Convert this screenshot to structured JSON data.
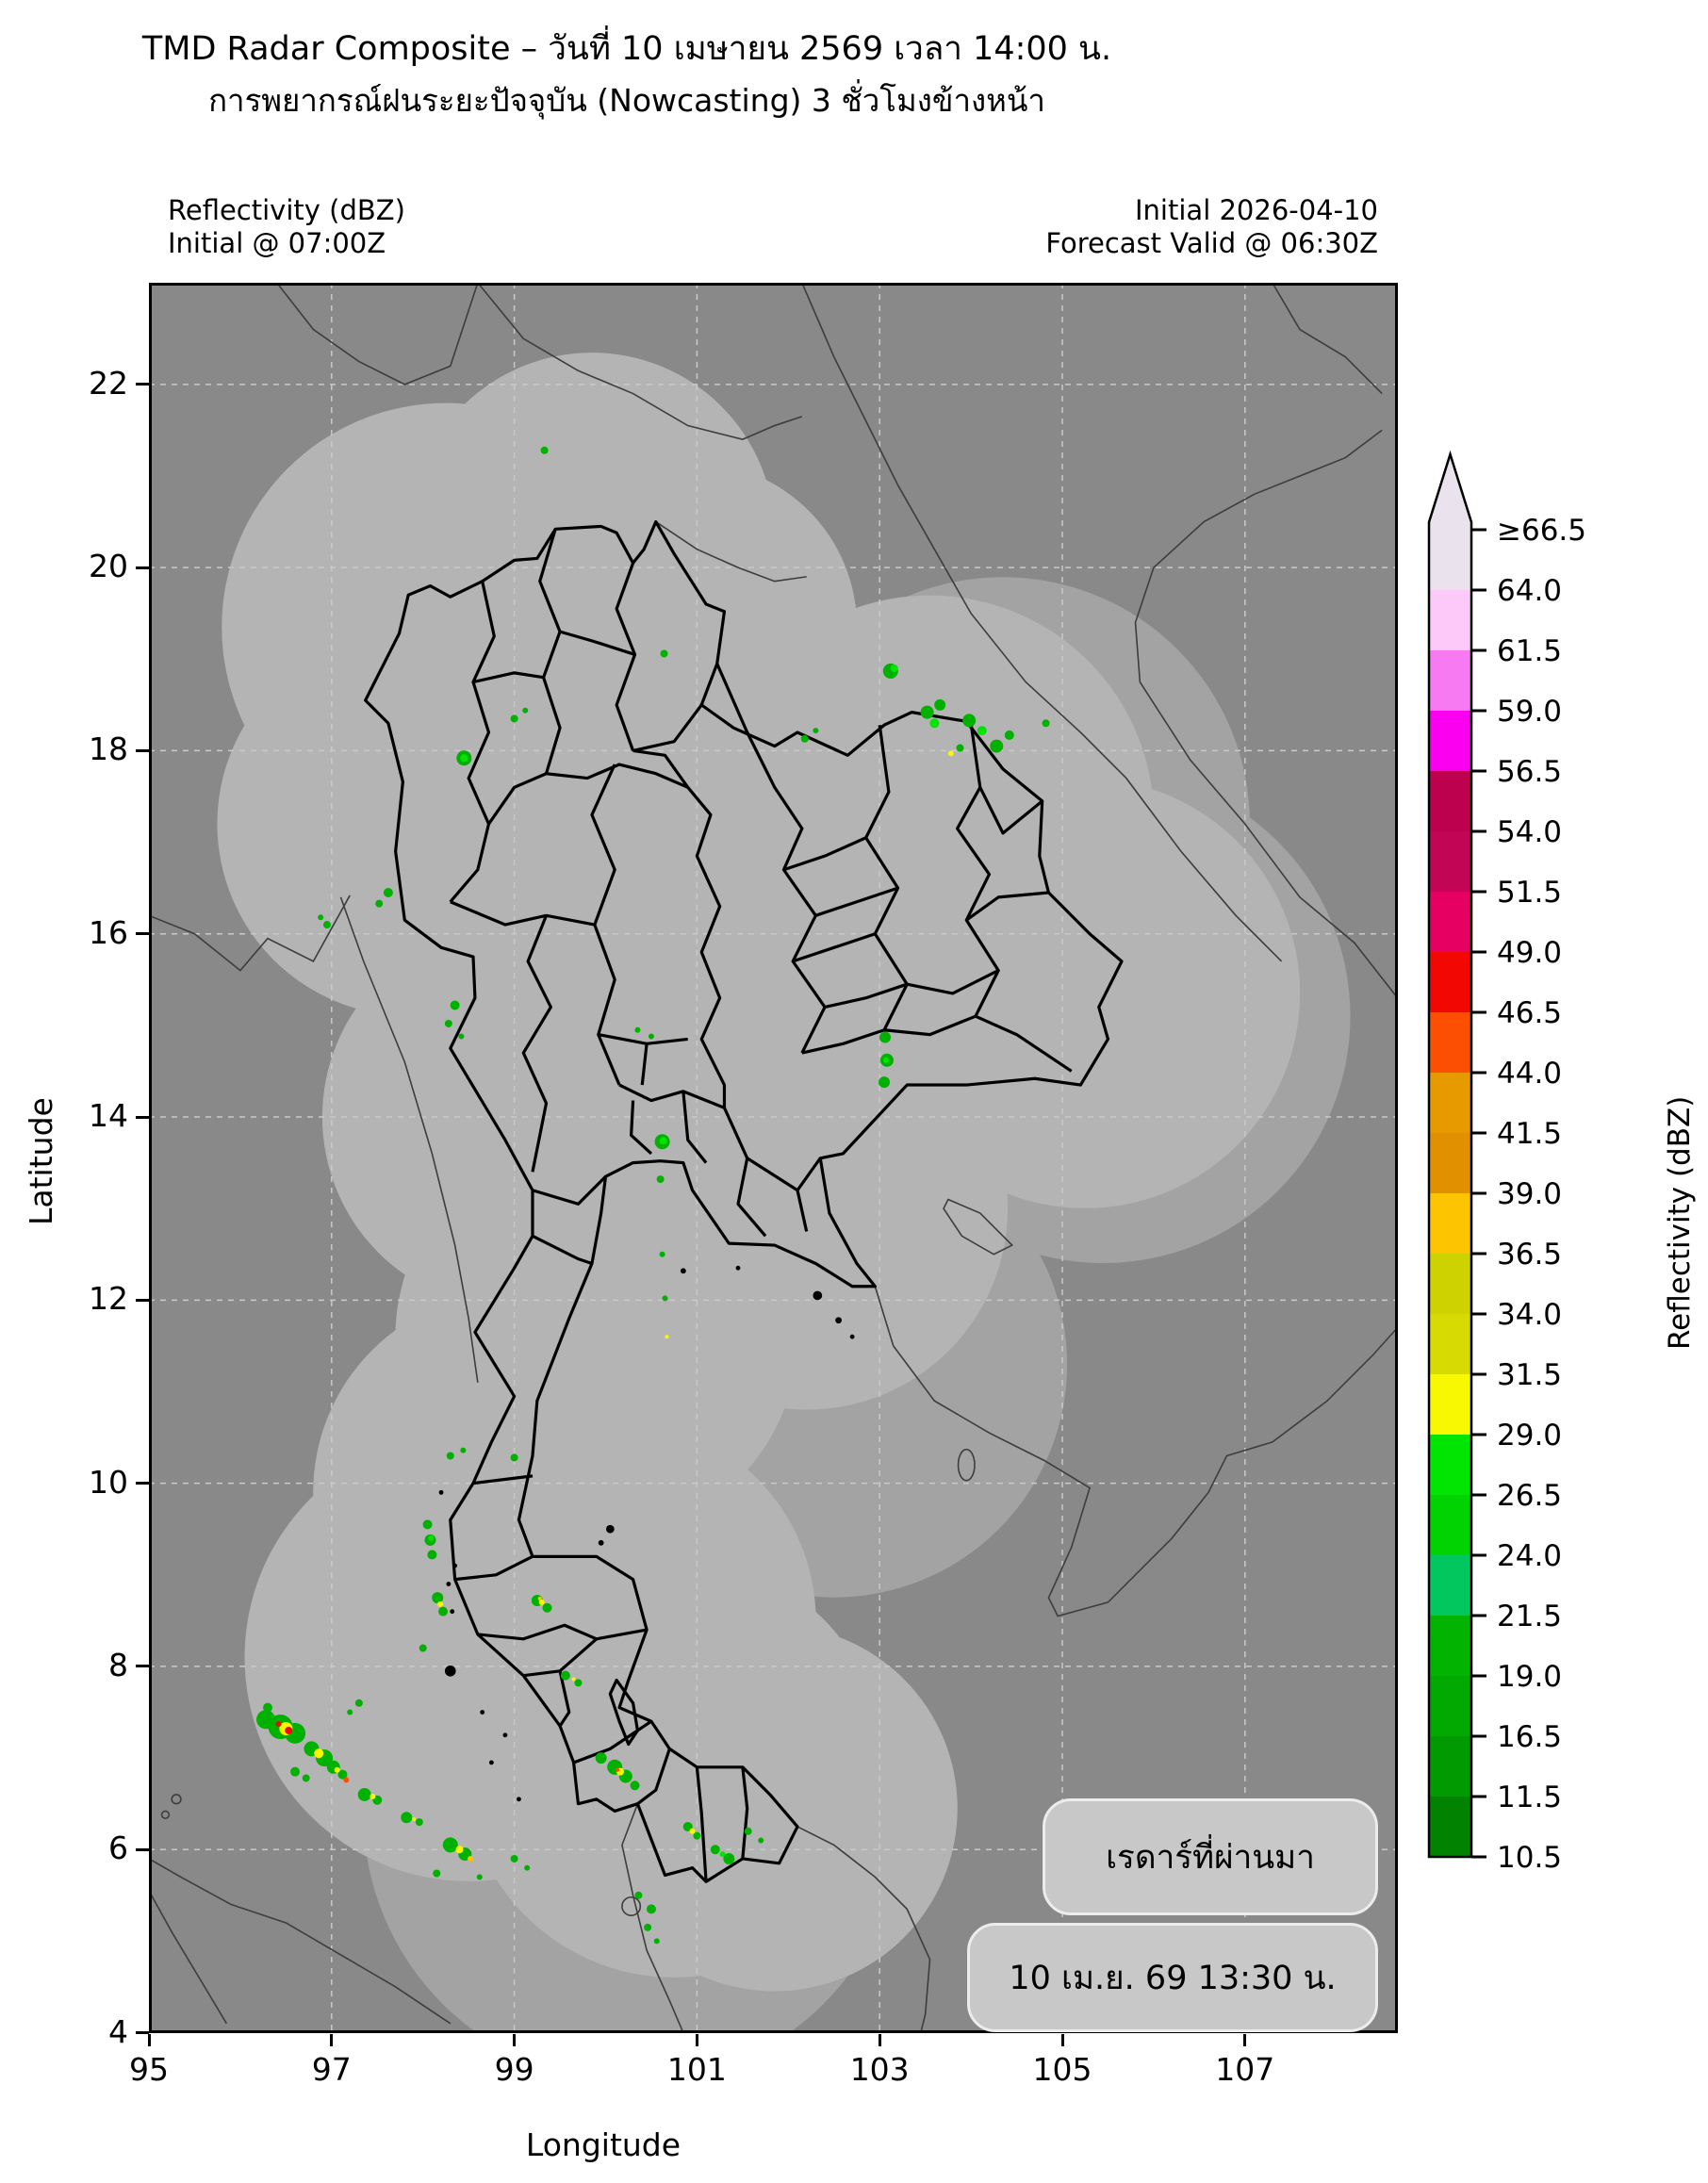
{
  "figure": {
    "title_line1": "TMD Radar Composite – วันที่ 10 เมษายน 2569 เวลา 14:00 น.",
    "title_line2": "การพยากรณ์ฝนระยะปัจจุบัน (Nowcasting) 3 ชั่วโมงข้างหน้า"
  },
  "annotations": {
    "top_left_line1": "Reflectivity (dBZ)",
    "top_left_line2": "Initial @ 07:00Z",
    "top_right_line1": "Initial 2026-04-10",
    "top_right_line2": "Forecast Valid @ 06:30Z",
    "box_radar_past": "เรดาร์ที่ผ่านมา",
    "box_timestamp": "10 เม.ย. 69 13:30 น."
  },
  "axes": {
    "xlabel": "Longitude",
    "ylabel": "Latitude",
    "x_ticks": [
      {
        "value": 95,
        "label": "95"
      },
      {
        "value": 97,
        "label": "97"
      },
      {
        "value": 99,
        "label": "99"
      },
      {
        "value": 101,
        "label": "101"
      },
      {
        "value": 103,
        "label": "103"
      },
      {
        "value": 105,
        "label": "105"
      },
      {
        "value": 107,
        "label": "107"
      }
    ],
    "y_ticks": [
      {
        "value": 22,
        "label": "22"
      },
      {
        "value": 20,
        "label": "20"
      },
      {
        "value": 18,
        "label": "18"
      },
      {
        "value": 16,
        "label": "16"
      },
      {
        "value": 14,
        "label": "14"
      },
      {
        "value": 12,
        "label": "12"
      },
      {
        "value": 10,
        "label": "10"
      },
      {
        "value": 8,
        "label": "8"
      },
      {
        "value": 6,
        "label": "6"
      },
      {
        "value": 4,
        "label": "4"
      }
    ]
  },
  "colorbar": {
    "label": "Reflectivity (dBZ)",
    "tick_labels": [
      "≥66.5",
      "64.0",
      "61.5",
      "59.0",
      "56.5",
      "54.0",
      "51.5",
      "49.0",
      "46.5",
      "44.0",
      "41.5",
      "39.0",
      "36.5",
      "34.0",
      "31.5",
      "29.0",
      "26.5",
      "24.0",
      "21.5",
      "19.0",
      "16.5",
      "11.5",
      "10.5"
    ],
    "segment_colors_top_to_bottom": [
      "#eae2ec",
      "#fdc9f8",
      "#f87af2",
      "#fb00f0",
      "#bd014f",
      "#c30556",
      "#e60061",
      "#f20703",
      "#fc4f03",
      "#e79900",
      "#e19100",
      "#fdc401",
      "#cfd201",
      "#d8da03",
      "#f7f801",
      "#02e402",
      "#00d301",
      "#01c75e",
      "#02b302",
      "#01a901",
      "#019a01",
      "#018301"
    ],
    "arrow_color": "#eae2ec"
  },
  "map_style": {
    "background": "#898989",
    "coverage_fill": "#b4b4b4",
    "coverage_far_fill": "#a3a3a3",
    "grid_color": "#c9c9c9",
    "province_color": "#000000",
    "country_color": "#3d3d3d",
    "box_fill": "#c8c8c8",
    "box_border": "#ececec"
  },
  "chart_data": {
    "type": "radar_reflectivity_map",
    "lon_range": [
      95,
      108.67
    ],
    "lat_range": [
      4,
      23.11
    ],
    "grid_lons": [
      97,
      99,
      101,
      103,
      105,
      107
    ],
    "grid_lats": [
      6,
      8,
      10,
      12,
      14,
      16,
      18,
      20,
      22
    ],
    "coverage_circles_deg": [
      [
        99.85,
        20.35,
        2.0
      ],
      [
        98.25,
        19.35,
        2.45
      ],
      [
        100.95,
        19.35,
        1.8
      ],
      [
        97.85,
        17.2,
        2.1
      ],
      [
        99.75,
        17.2,
        2.1
      ],
      [
        101.7,
        17.6,
        2.2
      ],
      [
        103.55,
        17.25,
        2.45
      ],
      [
        105.25,
        15.35,
        2.35
      ],
      [
        102.5,
        15.3,
        2.2
      ],
      [
        100.45,
        15.3,
        2.2
      ],
      [
        99.0,
        14.0,
        2.1
      ],
      [
        100.45,
        13.35,
        2.25
      ],
      [
        102.2,
        13.0,
        2.2
      ],
      [
        99.9,
        11.6,
        2.2
      ],
      [
        99.0,
        9.9,
        2.2
      ],
      [
        98.5,
        8.1,
        2.45
      ],
      [
        100.1,
        8.5,
        2.2
      ],
      [
        100.75,
        6.9,
        2.3
      ],
      [
        101.85,
        6.45,
        2.0
      ]
    ],
    "far_coverage_circles_deg": [
      [
        104.35,
        17.2,
        2.7
      ],
      [
        105.45,
        15.1,
        2.7
      ],
      [
        102.5,
        11.3,
        2.55
      ],
      [
        100.3,
        6.4,
        2.95
      ]
    ],
    "echo_palette": {
      "g": "#00b100",
      "G": "#02e402",
      "y": "#f7f801",
      "a": "#fdc401",
      "o": "#fc4f03",
      "r": "#f20703"
    },
    "echoes_lon_lat_r_color": [
      [
        99.33,
        21.28,
        4,
        "g"
      ],
      [
        103.12,
        18.87,
        8,
        "g"
      ],
      [
        103.16,
        18.9,
        4,
        "G"
      ],
      [
        103.52,
        18.42,
        7,
        "g"
      ],
      [
        103.66,
        18.5,
        6,
        "g"
      ],
      [
        103.6,
        18.3,
        5,
        "G"
      ],
      [
        103.98,
        18.33,
        7,
        "g"
      ],
      [
        104.12,
        18.22,
        5,
        "G"
      ],
      [
        104.28,
        18.05,
        7,
        "g"
      ],
      [
        104.42,
        18.17,
        5,
        "g"
      ],
      [
        103.88,
        18.03,
        4,
        "g"
      ],
      [
        103.78,
        17.97,
        3,
        "y"
      ],
      [
        104.82,
        18.3,
        4,
        "g"
      ],
      [
        102.18,
        18.13,
        4,
        "g"
      ],
      [
        102.3,
        18.22,
        3,
        "g"
      ],
      [
        99.0,
        18.35,
        4,
        "g"
      ],
      [
        99.12,
        18.44,
        3,
        "g"
      ],
      [
        98.45,
        17.92,
        8,
        "g"
      ],
      [
        98.45,
        17.92,
        4,
        "G"
      ],
      [
        100.64,
        19.06,
        4,
        "g"
      ],
      [
        97.62,
        16.45,
        5,
        "g"
      ],
      [
        97.52,
        16.33,
        4,
        "g"
      ],
      [
        96.95,
        16.1,
        4,
        "g"
      ],
      [
        96.88,
        16.18,
        3,
        "g"
      ],
      [
        98.35,
        15.22,
        5,
        "g"
      ],
      [
        98.28,
        15.02,
        4,
        "g"
      ],
      [
        98.42,
        14.88,
        3,
        "g"
      ],
      [
        100.35,
        14.95,
        3,
        "g"
      ],
      [
        100.5,
        14.88,
        3,
        "g"
      ],
      [
        103.06,
        14.87,
        6,
        "g"
      ],
      [
        103.08,
        14.62,
        7,
        "g"
      ],
      [
        103.05,
        14.38,
        6,
        "g"
      ],
      [
        103.07,
        14.62,
        3,
        "G"
      ],
      [
        100.62,
        13.73,
        8,
        "g"
      ],
      [
        100.63,
        13.74,
        4,
        "G"
      ],
      [
        100.6,
        13.32,
        4,
        "g"
      ],
      [
        100.62,
        12.5,
        3,
        "g"
      ],
      [
        100.65,
        12.02,
        3,
        "g"
      ],
      [
        100.67,
        11.6,
        2,
        "y"
      ],
      [
        96.3,
        7.55,
        5,
        "g"
      ],
      [
        96.28,
        7.42,
        10,
        "g"
      ],
      [
        96.44,
        7.34,
        13,
        "g"
      ],
      [
        96.6,
        7.27,
        11,
        "g"
      ],
      [
        96.5,
        7.32,
        7,
        "y"
      ],
      [
        96.53,
        7.3,
        4,
        "r"
      ],
      [
        96.42,
        7.37,
        3,
        "r"
      ],
      [
        96.6,
        6.85,
        5,
        "g"
      ],
      [
        96.72,
        6.78,
        4,
        "g"
      ],
      [
        96.78,
        7.1,
        8,
        "g"
      ],
      [
        96.92,
        7.0,
        9,
        "g"
      ],
      [
        96.86,
        7.05,
        5,
        "y"
      ],
      [
        97.02,
        6.9,
        7,
        "g"
      ],
      [
        97.12,
        6.82,
        5,
        "g"
      ],
      [
        97.06,
        6.87,
        3,
        "y"
      ],
      [
        97.16,
        6.76,
        3,
        "o"
      ],
      [
        97.36,
        6.6,
        7,
        "g"
      ],
      [
        97.5,
        6.54,
        5,
        "g"
      ],
      [
        97.45,
        6.58,
        3,
        "y"
      ],
      [
        97.3,
        7.6,
        4,
        "g"
      ],
      [
        97.2,
        7.5,
        3,
        "g"
      ],
      [
        97.82,
        6.35,
        6,
        "g"
      ],
      [
        97.96,
        6.3,
        4,
        "g"
      ],
      [
        97.9,
        6.33,
        2,
        "y"
      ],
      [
        98.3,
        6.05,
        8,
        "g"
      ],
      [
        98.46,
        5.95,
        7,
        "g"
      ],
      [
        98.4,
        6.0,
        4,
        "y"
      ],
      [
        98.52,
        5.9,
        3,
        "a"
      ],
      [
        98.15,
        5.74,
        4,
        "g"
      ],
      [
        98.62,
        5.7,
        3,
        "g"
      ],
      [
        99.0,
        5.9,
        4,
        "g"
      ],
      [
        99.14,
        5.8,
        3,
        "g"
      ],
      [
        98.05,
        9.55,
        5,
        "g"
      ],
      [
        98.08,
        9.38,
        6,
        "g"
      ],
      [
        98.1,
        9.22,
        5,
        "g"
      ],
      [
        98.09,
        9.4,
        3,
        "G"
      ],
      [
        98.16,
        8.75,
        6,
        "g"
      ],
      [
        98.22,
        8.6,
        5,
        "g"
      ],
      [
        98.19,
        8.68,
        3,
        "y"
      ],
      [
        98.0,
        8.2,
        4,
        "g"
      ],
      [
        98.3,
        10.3,
        4,
        "g"
      ],
      [
        98.44,
        10.36,
        3,
        "g"
      ],
      [
        99.0,
        10.28,
        4,
        "g"
      ],
      [
        99.25,
        8.72,
        6,
        "g"
      ],
      [
        99.36,
        8.64,
        5,
        "g"
      ],
      [
        99.3,
        8.7,
        3,
        "y"
      ],
      [
        99.28,
        8.74,
        2,
        "a"
      ],
      [
        99.56,
        7.9,
        5,
        "g"
      ],
      [
        99.7,
        7.82,
        4,
        "g"
      ],
      [
        99.65,
        7.86,
        2,
        "y"
      ],
      [
        99.95,
        7.0,
        6,
        "g"
      ],
      [
        100.1,
        6.9,
        8,
        "g"
      ],
      [
        100.22,
        6.8,
        7,
        "g"
      ],
      [
        100.16,
        6.85,
        4,
        "y"
      ],
      [
        100.13,
        6.87,
        2,
        "o"
      ],
      [
        100.32,
        6.7,
        5,
        "g"
      ],
      [
        100.9,
        6.25,
        5,
        "g"
      ],
      [
        101.0,
        6.15,
        4,
        "g"
      ],
      [
        100.95,
        6.2,
        3,
        "y"
      ],
      [
        101.2,
        6.0,
        5,
        "g"
      ],
      [
        101.35,
        5.9,
        6,
        "g"
      ],
      [
        101.28,
        5.95,
        3,
        "G"
      ],
      [
        100.36,
        5.5,
        4,
        "g"
      ],
      [
        100.5,
        5.35,
        5,
        "g"
      ],
      [
        100.46,
        5.15,
        4,
        "g"
      ],
      [
        100.56,
        5.0,
        3,
        "g"
      ],
      [
        101.56,
        6.2,
        4,
        "g"
      ],
      [
        101.7,
        6.1,
        3,
        "g"
      ]
    ]
  }
}
